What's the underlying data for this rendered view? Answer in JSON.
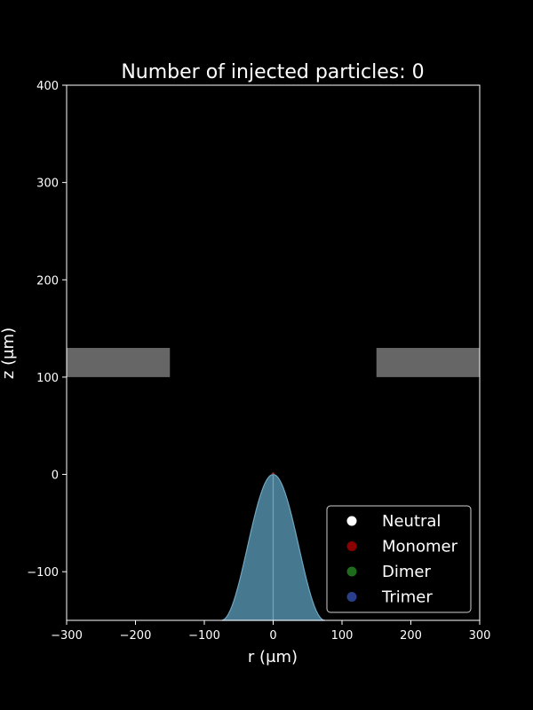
{
  "chart_data": {
    "type": "scatter",
    "title": "Number of injected particles: 0",
    "xlabel": "r (μm)",
    "ylabel": "z (μm)",
    "xlim": [
      -300,
      300
    ],
    "ylim": [
      -150,
      400
    ],
    "xticks": [
      "−300",
      "−200",
      "−100",
      "0",
      "100",
      "200",
      "300"
    ],
    "xtick_values": [
      -300,
      -200,
      -100,
      0,
      100,
      200,
      300
    ],
    "yticks": [
      "−100",
      "0",
      "100",
      "200",
      "300",
      "400"
    ],
    "ytick_values": [
      -100,
      0,
      100,
      200,
      300,
      400
    ],
    "grid": false,
    "legend_placement": "lower-right",
    "electrodes": [
      {
        "r_min": -300,
        "r_max": -150,
        "z_min": 100,
        "z_max": 130,
        "color": "#666666"
      },
      {
        "r_min": 150,
        "r_max": 300,
        "z_min": 100,
        "z_max": 130,
        "color": "#666666"
      }
    ],
    "meniscus": {
      "apex_z": 0,
      "base_z": -150,
      "base_half_width": 75,
      "fill_color": "#46788f",
      "edge_color": "#6fa6c0"
    },
    "series": [
      {
        "name": "Neutral",
        "color": "#ffffff",
        "points": []
      },
      {
        "name": "Monomer",
        "color": "#8b0000",
        "points": []
      },
      {
        "name": "Dimer",
        "color": "#1e6b1e",
        "points": []
      },
      {
        "name": "Trimer",
        "color": "#2a3f8a",
        "points": []
      }
    ]
  }
}
